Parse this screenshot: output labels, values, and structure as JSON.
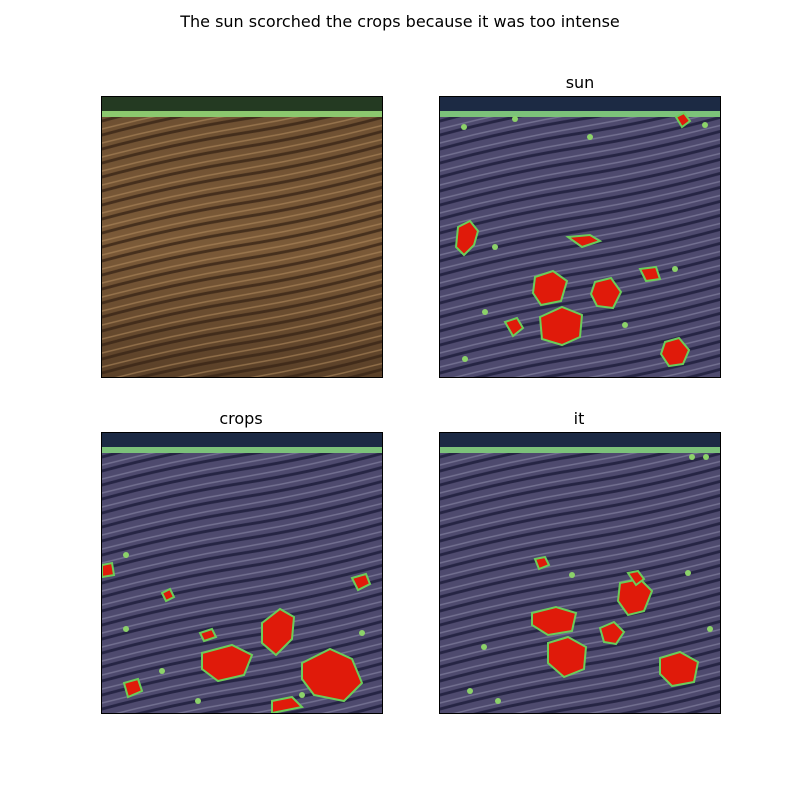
{
  "figure": {
    "title": "The sun scorched the crops because it was too intense"
  },
  "panels": [
    {
      "title": "",
      "heatmap": false
    },
    {
      "title": "sun",
      "heatmap": true
    },
    {
      "title": "crops",
      "heatmap": true
    },
    {
      "title": "it",
      "heatmap": true
    }
  ]
}
